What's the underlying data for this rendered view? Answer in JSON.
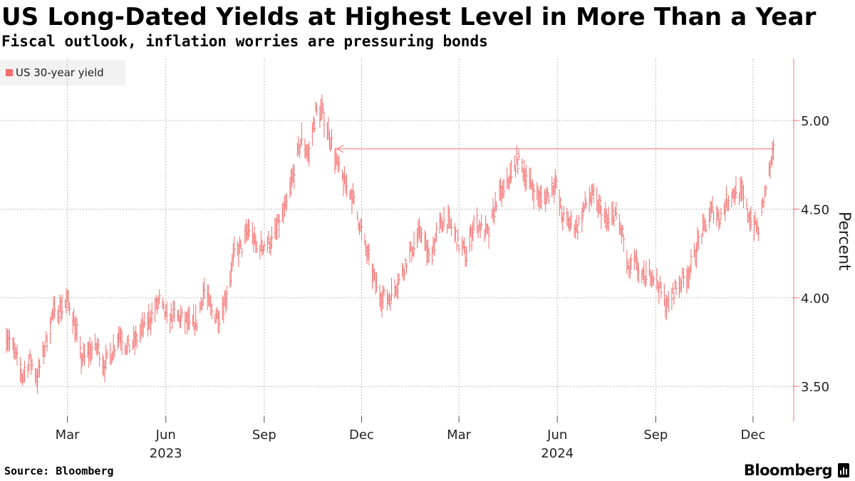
{
  "header": {
    "title": "US Long-Dated Yields at Highest Level in More Than a Year",
    "subtitle": "Fiscal outlook, inflation worries are pressuring bonds"
  },
  "footer": {
    "source": "Source: Bloomberg",
    "brand": "Bloomberg"
  },
  "colors": {
    "series": "#f46d6d",
    "grid": "#bdbdbd",
    "axis": "#f46d6d"
  },
  "chart_data": {
    "type": "line",
    "title": "US Long-Dated Yields at Highest Level in More Than a Year",
    "subtitle": "Fiscal outlook, inflation worries are pressuring bonds",
    "ylabel": "Percent",
    "xlabel": "",
    "ylim": [
      3.3,
      5.35
    ],
    "yticks": [
      3.5,
      4.0,
      4.5,
      5.0
    ],
    "ytick_labels": [
      "3.50",
      "4.00",
      "4.50",
      "5.00"
    ],
    "x_range": [
      "2023-01-03",
      "2024-12-20"
    ],
    "xticks": [
      {
        "date": "2023-03-01",
        "label": "Mar"
      },
      {
        "date": "2023-06-01",
        "label": "Jun"
      },
      {
        "date": "2023-09-01",
        "label": "Sep"
      },
      {
        "date": "2023-12-01",
        "label": "Dec"
      },
      {
        "date": "2024-03-01",
        "label": "Mar"
      },
      {
        "date": "2024-06-01",
        "label": "Jun"
      },
      {
        "date": "2024-09-01",
        "label": "Sep"
      },
      {
        "date": "2024-12-01",
        "label": "Dec"
      }
    ],
    "year_labels": [
      {
        "date": "2023-06-01",
        "label": "2023"
      },
      {
        "date": "2024-06-01",
        "label": "2024"
      }
    ],
    "legend": [
      "US 30-year yield"
    ],
    "series": [
      {
        "name": "US 30-year yield",
        "points": [
          [
            "2023-01-03",
            3.8
          ],
          [
            "2023-01-10",
            3.7
          ],
          [
            "2023-01-18",
            3.55
          ],
          [
            "2023-01-25",
            3.65
          ],
          [
            "2023-02-01",
            3.55
          ],
          [
            "2023-02-09",
            3.75
          ],
          [
            "2023-02-15",
            3.9
          ],
          [
            "2023-02-22",
            3.95
          ],
          [
            "2023-03-02",
            3.98
          ],
          [
            "2023-03-08",
            3.85
          ],
          [
            "2023-03-14",
            3.65
          ],
          [
            "2023-03-22",
            3.7
          ],
          [
            "2023-03-29",
            3.72
          ],
          [
            "2023-04-05",
            3.62
          ],
          [
            "2023-04-12",
            3.7
          ],
          [
            "2023-04-19",
            3.8
          ],
          [
            "2023-04-26",
            3.72
          ],
          [
            "2023-05-03",
            3.75
          ],
          [
            "2023-05-10",
            3.82
          ],
          [
            "2023-05-17",
            3.88
          ],
          [
            "2023-05-26",
            3.98
          ],
          [
            "2023-06-02",
            3.88
          ],
          [
            "2023-06-09",
            3.9
          ],
          [
            "2023-06-16",
            3.88
          ],
          [
            "2023-06-23",
            3.85
          ],
          [
            "2023-06-30",
            3.86
          ],
          [
            "2023-07-07",
            4.05
          ],
          [
            "2023-07-14",
            3.92
          ],
          [
            "2023-07-21",
            3.9
          ],
          [
            "2023-07-28",
            4.02
          ],
          [
            "2023-08-04",
            4.25
          ],
          [
            "2023-08-11",
            4.28
          ],
          [
            "2023-08-18",
            4.4
          ],
          [
            "2023-08-25",
            4.28
          ],
          [
            "2023-09-01",
            4.3
          ],
          [
            "2023-09-08",
            4.32
          ],
          [
            "2023-09-15",
            4.42
          ],
          [
            "2023-09-22",
            4.52
          ],
          [
            "2023-09-29",
            4.72
          ],
          [
            "2023-10-06",
            4.9
          ],
          [
            "2023-10-13",
            4.8
          ],
          [
            "2023-10-19",
            5.05
          ],
          [
            "2023-10-25",
            5.05
          ],
          [
            "2023-11-01",
            4.92
          ],
          [
            "2023-11-08",
            4.75
          ],
          [
            "2023-11-15",
            4.65
          ],
          [
            "2023-11-22",
            4.58
          ],
          [
            "2023-11-29",
            4.42
          ],
          [
            "2023-12-06",
            4.25
          ],
          [
            "2023-12-13",
            4.1
          ],
          [
            "2023-12-20",
            4.0
          ],
          [
            "2023-12-27",
            4.0
          ],
          [
            "2024-01-05",
            4.1
          ],
          [
            "2024-01-12",
            4.2
          ],
          [
            "2024-01-19",
            4.3
          ],
          [
            "2024-01-26",
            4.38
          ],
          [
            "2024-02-02",
            4.22
          ],
          [
            "2024-02-09",
            4.35
          ],
          [
            "2024-02-16",
            4.45
          ],
          [
            "2024-02-23",
            4.4
          ],
          [
            "2024-03-01",
            4.3
          ],
          [
            "2024-03-08",
            4.25
          ],
          [
            "2024-03-15",
            4.42
          ],
          [
            "2024-03-22",
            4.4
          ],
          [
            "2024-03-29",
            4.35
          ],
          [
            "2024-04-05",
            4.55
          ],
          [
            "2024-04-12",
            4.6
          ],
          [
            "2024-04-19",
            4.7
          ],
          [
            "2024-04-25",
            4.78
          ],
          [
            "2024-05-02",
            4.7
          ],
          [
            "2024-05-09",
            4.62
          ],
          [
            "2024-05-16",
            4.55
          ],
          [
            "2024-05-23",
            4.58
          ],
          [
            "2024-05-30",
            4.65
          ],
          [
            "2024-06-06",
            4.45
          ],
          [
            "2024-06-13",
            4.42
          ],
          [
            "2024-06-20",
            4.4
          ],
          [
            "2024-06-27",
            4.52
          ],
          [
            "2024-07-03",
            4.58
          ],
          [
            "2024-07-11",
            4.5
          ],
          [
            "2024-07-18",
            4.42
          ],
          [
            "2024-07-25",
            4.48
          ],
          [
            "2024-08-01",
            4.35
          ],
          [
            "2024-08-06",
            4.15
          ],
          [
            "2024-08-13",
            4.2
          ],
          [
            "2024-08-20",
            4.1
          ],
          [
            "2024-08-27",
            4.15
          ],
          [
            "2024-09-05",
            4.05
          ],
          [
            "2024-09-12",
            3.95
          ],
          [
            "2024-09-19",
            4.05
          ],
          [
            "2024-09-26",
            4.1
          ],
          [
            "2024-10-03",
            4.15
          ],
          [
            "2024-10-10",
            4.3
          ],
          [
            "2024-10-17",
            4.4
          ],
          [
            "2024-10-24",
            4.5
          ],
          [
            "2024-10-31",
            4.45
          ],
          [
            "2024-11-07",
            4.55
          ],
          [
            "2024-11-14",
            4.6
          ],
          [
            "2024-11-21",
            4.58
          ],
          [
            "2024-11-26",
            4.48
          ],
          [
            "2024-12-02",
            4.42
          ],
          [
            "2024-12-06",
            4.38
          ],
          [
            "2024-12-11",
            4.55
          ],
          [
            "2024-12-16",
            4.7
          ],
          [
            "2024-12-20",
            4.8
          ]
        ]
      }
    ],
    "annotation": {
      "type": "arrow",
      "level": 4.84,
      "from_date": "2024-12-20",
      "to_date": "2023-11-08"
    }
  }
}
